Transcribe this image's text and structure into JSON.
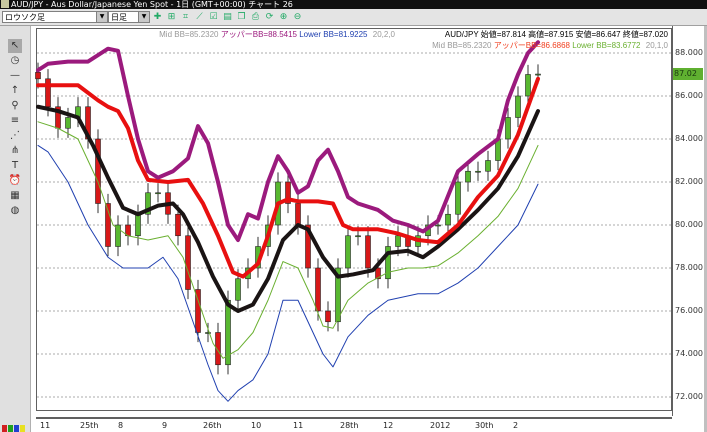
{
  "window": {
    "title": "AUD/JPY - Aus Dollar/Japanese Yen Spot - 1日 (GMT+00:00)   チャート 26"
  },
  "toolbar": {
    "chart_type": "ロウソク足",
    "timeframe": "日足",
    "icons": [
      "indicator-icon",
      "add-icon",
      "crosshair-icon",
      "line-chart-icon",
      "check-icon",
      "document-icon",
      "copy-icon",
      "print-icon",
      "refresh-icon",
      "zoom-in-icon",
      "zoom-out-icon"
    ]
  },
  "left_tools": [
    "pointer-icon",
    "clock-icon",
    "horizontal-line-icon",
    "arrow-up-icon",
    "magnifier-icon",
    "fibonacci-icon",
    "gann-fan-icon",
    "pitchfork-icon",
    "text-icon",
    "alarm-icon",
    "calculator-icon",
    "globe-icon"
  ],
  "legend": {
    "bb2": {
      "mid": "Mid BB=85.2320",
      "upper": "アッパーBB=88.5415",
      "lower": "Lower BB=81.9225",
      "params": "20,2,0"
    },
    "ohlc": "AUD/JPY 始値=87.814 高値=87.915 安値=86.647 終値=87.020",
    "bb1": {
      "mid": "Mid BB=85.2320",
      "upper": "アッパーBB=86.6868",
      "lower": "Lower BB=83.6772",
      "params": "20,1,0"
    }
  },
  "colors": {
    "upper2": "#9b1a7d",
    "upper1": "#e81010",
    "mid": "#1a1414",
    "lower1": "#6ab030",
    "lower2": "#2040b0",
    "up_candle": "#58b830",
    "down_candle": "#d81818",
    "price_tag": "#5fb030"
  },
  "current_price": "87.02",
  "chart_data": {
    "type": "candlestick",
    "ylim": [
      71,
      89.5
    ],
    "y_ticks": [
      "88.000",
      "86.000",
      "84.000",
      "82.000",
      "80.000",
      "78.000",
      "76.000",
      "74.000",
      "72.000"
    ],
    "y_tick_values": [
      88,
      86,
      84,
      82,
      80,
      78,
      76,
      74,
      72
    ],
    "x_ticks": [
      {
        "label": "11",
        "bar": 0.4
      },
      {
        "label": "25th",
        "bar": 8.4
      },
      {
        "label": "8",
        "bar": 16
      },
      {
        "label": "9",
        "bar": 24.8
      },
      {
        "label": "26th",
        "bar": 33
      },
      {
        "label": "10",
        "bar": 42.6
      },
      {
        "label": "11",
        "bar": 51
      },
      {
        "label": "28th",
        "bar": 60.4
      },
      {
        "label": "12",
        "bar": 69
      },
      {
        "label": "2012",
        "bar": 78.4
      },
      {
        "label": "30th",
        "bar": 87.4
      },
      {
        "label": "2",
        "bar": 95
      }
    ],
    "closes": [
      86.8,
      85.5,
      84.5,
      85,
      85.5,
      84,
      81,
      79,
      80,
      79.5,
      80.5,
      81.5,
      81.5,
      80.5,
      79.5,
      77,
      75,
      75,
      73.5,
      76.5,
      77.5,
      78,
      79,
      80,
      82,
      81,
      80,
      78,
      76,
      75.5,
      78,
      79.5,
      79.5,
      78,
      77.5,
      79,
      79.5,
      79,
      79.5,
      80,
      80,
      80.5,
      82,
      82.5,
      82.5,
      83,
      84,
      85,
      86,
      87,
      87.02
    ],
    "series": [
      {
        "name": "アッパーBB (20,2,0)",
        "color": "#9b1a7d",
        "width": 4,
        "points": [
          [
            0,
            87.2
          ],
          [
            2,
            87.5
          ],
          [
            6,
            87.6
          ],
          [
            10,
            87.6
          ],
          [
            14,
            88.2
          ],
          [
            16,
            88.1
          ],
          [
            18,
            86
          ],
          [
            20,
            84
          ],
          [
            22,
            82.5
          ],
          [
            24,
            82.2
          ],
          [
            27,
            82.5
          ],
          [
            30,
            83.1
          ],
          [
            32,
            84.6
          ],
          [
            34,
            83.8
          ],
          [
            36,
            82
          ],
          [
            38,
            80
          ],
          [
            40,
            79.3
          ],
          [
            42,
            80.5
          ],
          [
            44,
            80.3
          ],
          [
            46,
            82
          ],
          [
            48,
            83.2
          ],
          [
            50,
            82.5
          ],
          [
            52,
            81.5
          ],
          [
            54,
            81.8
          ],
          [
            56,
            83
          ],
          [
            58,
            83.5
          ],
          [
            60,
            82.5
          ],
          [
            62,
            81.3
          ],
          [
            64,
            81
          ],
          [
            68,
            80.7
          ],
          [
            71,
            80.2
          ],
          [
            74,
            80
          ],
          [
            77,
            79.7
          ],
          [
            80,
            80.2
          ],
          [
            84,
            82.5
          ],
          [
            88,
            83.3
          ],
          [
            92,
            84
          ],
          [
            94,
            85.8
          ],
          [
            96,
            87
          ],
          [
            98,
            88
          ],
          [
            100,
            88.5
          ]
        ]
      },
      {
        "name": "アッパーBB (20,1,0)",
        "color": "#e81010",
        "width": 4,
        "points": [
          [
            0,
            86.5
          ],
          [
            8,
            86.5
          ],
          [
            12,
            85.8
          ],
          [
            14,
            85.5
          ],
          [
            16,
            85.3
          ],
          [
            18,
            84.5
          ],
          [
            20,
            83
          ],
          [
            22,
            82.1
          ],
          [
            26,
            82
          ],
          [
            30,
            82.1
          ],
          [
            33,
            81
          ],
          [
            36,
            79.5
          ],
          [
            39,
            77.8
          ],
          [
            41,
            77.6
          ],
          [
            44,
            78.2
          ],
          [
            46,
            79.5
          ],
          [
            48,
            81
          ],
          [
            50,
            81.2
          ],
          [
            52,
            81.1
          ],
          [
            56,
            81.1
          ],
          [
            59,
            81
          ],
          [
            61,
            80
          ],
          [
            63,
            79.8
          ],
          [
            68,
            79.8
          ],
          [
            72,
            79.6
          ],
          [
            76,
            79.3
          ],
          [
            80,
            79.2
          ],
          [
            84,
            80
          ],
          [
            88,
            81.3
          ],
          [
            92,
            82.3
          ],
          [
            96,
            84.2
          ],
          [
            100,
            86.8
          ]
        ]
      },
      {
        "name": "Mid BB",
        "color": "#1a1414",
        "width": 4,
        "points": [
          [
            0,
            85.5
          ],
          [
            4,
            85.3
          ],
          [
            8,
            85
          ],
          [
            11,
            83.7
          ],
          [
            14,
            82.2
          ],
          [
            17,
            80.8
          ],
          [
            20,
            80.5
          ],
          [
            24,
            80.9
          ],
          [
            27,
            81
          ],
          [
            29,
            80.5
          ],
          [
            32,
            79.2
          ],
          [
            35,
            77.6
          ],
          [
            38,
            76.3
          ],
          [
            40,
            76
          ],
          [
            43,
            76.3
          ],
          [
            46,
            77.5
          ],
          [
            49,
            79.3
          ],
          [
            52,
            80
          ],
          [
            54,
            79.8
          ],
          [
            57,
            78.5
          ],
          [
            60,
            77.6
          ],
          [
            63,
            77.7
          ],
          [
            67,
            77.9
          ],
          [
            70,
            78.7
          ],
          [
            74,
            78.8
          ],
          [
            77,
            78.5
          ],
          [
            80,
            79
          ],
          [
            84,
            79.8
          ],
          [
            88,
            80.7
          ],
          [
            92,
            81.7
          ],
          [
            96,
            83.2
          ],
          [
            100,
            85.3
          ]
        ]
      },
      {
        "name": "Lower BB (20,1,0)",
        "color": "#6ab030",
        "width": 1,
        "points": [
          [
            0,
            84.8
          ],
          [
            4,
            84.5
          ],
          [
            8,
            84
          ],
          [
            12,
            82
          ],
          [
            15,
            80
          ],
          [
            18,
            79.5
          ],
          [
            22,
            79.3
          ],
          [
            26,
            79.5
          ],
          [
            29,
            78.5
          ],
          [
            32,
            76.5
          ],
          [
            35,
            74.5
          ],
          [
            37,
            73.8
          ],
          [
            40,
            74.2
          ],
          [
            43,
            75
          ],
          [
            46,
            76.5
          ],
          [
            49,
            78.3
          ],
          [
            52,
            78
          ],
          [
            55,
            76.5
          ],
          [
            57,
            75.3
          ],
          [
            59,
            75.2
          ],
          [
            62,
            76.5
          ],
          [
            66,
            77.3
          ],
          [
            70,
            77.8
          ],
          [
            74,
            78
          ],
          [
            77,
            78
          ],
          [
            80,
            78.1
          ],
          [
            84,
            78.7
          ],
          [
            88,
            79.5
          ],
          [
            92,
            80.4
          ],
          [
            96,
            81.7
          ],
          [
            100,
            83.7
          ]
        ]
      },
      {
        "name": "Lower BB (20,2,0)",
        "color": "#2040b0",
        "width": 1,
        "points": [
          [
            0,
            83.7
          ],
          [
            2,
            83.4
          ],
          [
            6,
            82
          ],
          [
            10,
            80
          ],
          [
            14,
            78.5
          ],
          [
            17,
            78
          ],
          [
            22,
            78
          ],
          [
            25,
            78.5
          ],
          [
            28,
            77.5
          ],
          [
            31,
            75.5
          ],
          [
            34,
            73.5
          ],
          [
            36,
            72.3
          ],
          [
            38,
            71.8
          ],
          [
            40,
            72.3
          ],
          [
            43,
            72.8
          ],
          [
            46,
            74
          ],
          [
            49,
            76.5
          ],
          [
            52,
            76.5
          ],
          [
            55,
            75
          ],
          [
            57,
            74
          ],
          [
            59,
            73.4
          ],
          [
            62,
            74.8
          ],
          [
            66,
            75.8
          ],
          [
            70,
            76.5
          ],
          [
            76,
            76.8
          ],
          [
            80,
            76.8
          ],
          [
            84,
            77.3
          ],
          [
            88,
            78
          ],
          [
            92,
            79
          ],
          [
            96,
            80
          ],
          [
            100,
            81.9
          ]
        ]
      }
    ]
  }
}
